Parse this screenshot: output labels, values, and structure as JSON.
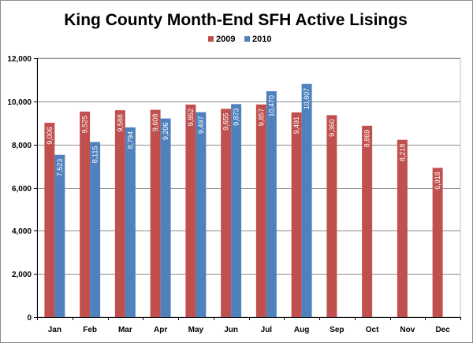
{
  "chart_data": {
    "type": "bar",
    "title": "King County Month-End SFH Active Lisings",
    "xlabel": "",
    "ylabel": "",
    "categories": [
      "Jan",
      "Feb",
      "Mar",
      "Apr",
      "May",
      "Jun",
      "Jul",
      "Aug",
      "Sep",
      "Oct",
      "Nov",
      "Dec"
    ],
    "series": [
      {
        "name": "2009",
        "color": "#c0504d",
        "values": [
          9006,
          9525,
          9588,
          9608,
          9852,
          9655,
          9857,
          9491,
          9360,
          8869,
          8218,
          6918
        ],
        "labels": [
          "9,006",
          "9,525",
          "9,588",
          "9,608",
          "9,852",
          "9,655",
          "9,857",
          "9,491",
          "9,360",
          "8,869",
          "8,218",
          "6,918"
        ]
      },
      {
        "name": "2010",
        "color": "#4f81bd",
        "values": [
          7523,
          8115,
          8794,
          9206,
          9497,
          9873,
          10470,
          10807,
          null,
          null,
          null,
          null
        ],
        "labels": [
          "7,523",
          "8,115",
          "8,794",
          "9,206",
          "9,497",
          "9,873",
          "10,470",
          "10,807",
          null,
          null,
          null,
          null
        ]
      }
    ],
    "ylim": [
      0,
      12000
    ],
    "yticks": [
      0,
      2000,
      4000,
      6000,
      8000,
      10000,
      12000
    ],
    "ytick_labels": [
      "0",
      "2,000",
      "4,000",
      "6,000",
      "8,000",
      "10,000",
      "12,000"
    ],
    "grid": true,
    "legend": "top-center"
  }
}
